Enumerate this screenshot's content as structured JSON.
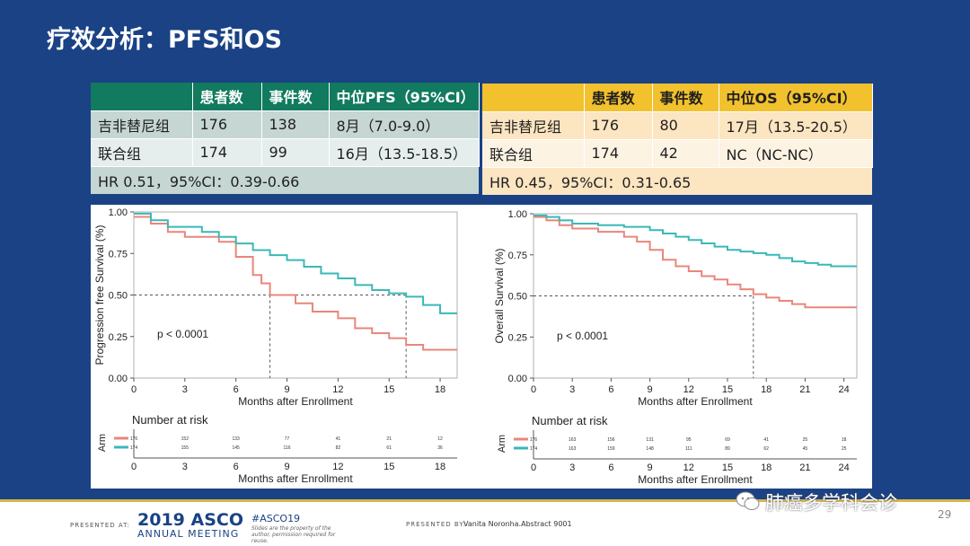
{
  "slide": {
    "title": "疗效分析：PFS和OS",
    "page_number": "29"
  },
  "colors": {
    "background_blue": "#1a4285",
    "pfs_header": "#117a5f",
    "os_header": "#f2c12e",
    "gefitinib_curve": "#e8877b",
    "combination_curve": "#3bb8b8"
  },
  "pfs_table": {
    "headers": [
      "",
      "患者数",
      "事件数",
      "中位PFS（95%CI）"
    ],
    "rows": [
      [
        "吉非替尼组",
        "176",
        "138",
        "8月（7.0-9.0）"
      ],
      [
        "联合组",
        "174",
        "99",
        "16月（13.5-18.5）"
      ]
    ],
    "hr": "HR 0.51，95%CI：0.39-0.66"
  },
  "os_table": {
    "headers": [
      "",
      "患者数",
      "事件数",
      "中位OS（95%CI）"
    ],
    "rows": [
      [
        "吉非替尼组",
        "176",
        "80",
        "17月（13.5-20.5）"
      ],
      [
        "联合组",
        "174",
        "42",
        "NC（NC-NC）"
      ]
    ],
    "hr": "HR 0.45，95%CI：0.31-0.65"
  },
  "chart_data": [
    {
      "type": "line",
      "step": true,
      "ylabel": "Progression free Survival (%)",
      "xlabel": "Months after Enrollment",
      "xlim": [
        0,
        19
      ],
      "ylim": [
        0,
        1
      ],
      "xticks": [
        0,
        3,
        6,
        9,
        12,
        15,
        18
      ],
      "yticks": [
        "0.00",
        "0.25",
        "0.50",
        "0.75",
        "1.00"
      ],
      "annotation": "p < 0.0001",
      "median_reference": {
        "y": 0.5,
        "x": [
          8,
          16
        ]
      },
      "series": [
        {
          "color": "#e8877b",
          "x": [
            0,
            1,
            2,
            3,
            5,
            6,
            7,
            7.5,
            8,
            9.5,
            10.5,
            12,
            13,
            14,
            15,
            16,
            17,
            19
          ],
          "y": [
            0.97,
            0.93,
            0.88,
            0.85,
            0.82,
            0.73,
            0.62,
            0.57,
            0.5,
            0.45,
            0.4,
            0.36,
            0.3,
            0.27,
            0.24,
            0.2,
            0.17,
            0.17
          ]
        },
        {
          "color": "#3bb8b8",
          "x": [
            0,
            1,
            2,
            4,
            5,
            6,
            7,
            8,
            9,
            10,
            11,
            12,
            13,
            14,
            15,
            16,
            17,
            18,
            19
          ],
          "y": [
            0.99,
            0.95,
            0.91,
            0.88,
            0.85,
            0.81,
            0.77,
            0.74,
            0.71,
            0.67,
            0.63,
            0.6,
            0.56,
            0.53,
            0.51,
            0.49,
            0.44,
            0.39,
            0.39
          ]
        }
      ],
      "risk_table": {
        "title": "Number at risk",
        "ylabel": "Arm",
        "xlabel": "Months after Enrollment",
        "times": [
          0,
          3,
          6,
          9,
          12,
          15,
          18
        ],
        "rows": [
          {
            "color": "#e8877b",
            "counts": [
              "176",
              "152",
              "133",
              "77",
              "41",
              "21",
              "12"
            ]
          },
          {
            "color": "#3bb8b8",
            "counts": [
              "174",
              "155",
              "145",
              "116",
              "82",
              "61",
              "36"
            ]
          }
        ]
      }
    },
    {
      "type": "line",
      "step": true,
      "ylabel": "Overall Survival (%)",
      "xlabel": "Months after Enrollment",
      "xlim": [
        0,
        25
      ],
      "ylim": [
        0,
        1
      ],
      "xticks": [
        0,
        3,
        6,
        9,
        12,
        15,
        18,
        21,
        24
      ],
      "yticks": [
        "0.00",
        "0.25",
        "0.50",
        "0.75",
        "1.00"
      ],
      "annotation": "p < 0.0001",
      "median_reference": {
        "y": 0.5,
        "x": [
          17
        ]
      },
      "series": [
        {
          "color": "#e8877b",
          "x": [
            0,
            1,
            2,
            3,
            5,
            7,
            8,
            9,
            10,
            11,
            12,
            13,
            14,
            15,
            16,
            17,
            18,
            19,
            20,
            21,
            25
          ],
          "y": [
            0.98,
            0.96,
            0.93,
            0.91,
            0.89,
            0.86,
            0.83,
            0.78,
            0.72,
            0.68,
            0.65,
            0.62,
            0.6,
            0.57,
            0.54,
            0.51,
            0.49,
            0.47,
            0.45,
            0.43,
            0.43
          ]
        },
        {
          "color": "#3bb8b8",
          "x": [
            0,
            1,
            2,
            3,
            5,
            7,
            9,
            10,
            11,
            12,
            13,
            14,
            15,
            16,
            17,
            18,
            19,
            20,
            21,
            22,
            23,
            25
          ],
          "y": [
            0.99,
            0.98,
            0.96,
            0.94,
            0.93,
            0.92,
            0.9,
            0.88,
            0.86,
            0.84,
            0.82,
            0.8,
            0.78,
            0.77,
            0.76,
            0.75,
            0.73,
            0.71,
            0.7,
            0.69,
            0.68,
            0.68
          ]
        }
      ],
      "risk_table": {
        "title": "Number at risk",
        "ylabel": "Arm",
        "xlabel": "Months after Enrollment",
        "times": [
          0,
          3,
          6,
          9,
          12,
          15,
          18,
          21,
          24
        ],
        "rows": [
          {
            "color": "#e8877b",
            "counts": [
              "176",
              "163",
              "156",
              "131",
              "95",
              "69",
              "41",
              "25",
              "18"
            ]
          },
          {
            "color": "#3bb8b8",
            "counts": [
              "174",
              "163",
              "159",
              "148",
              "111",
              "89",
              "62",
              "45",
              "25"
            ]
          }
        ]
      }
    }
  ],
  "footer": {
    "presented_at": "PRESENTED AT:",
    "asco_year": "2019 ASCO",
    "asco_sub": "ANNUAL MEETING",
    "hashtag": "#ASCO19",
    "rights": "Slides are the property of the author, permission required for reuse.",
    "presented_by": "PRESENTED BY:",
    "presenter": "Vanita Noronha.Abstract 9001",
    "watermark": "肺癌多学科会诊"
  }
}
